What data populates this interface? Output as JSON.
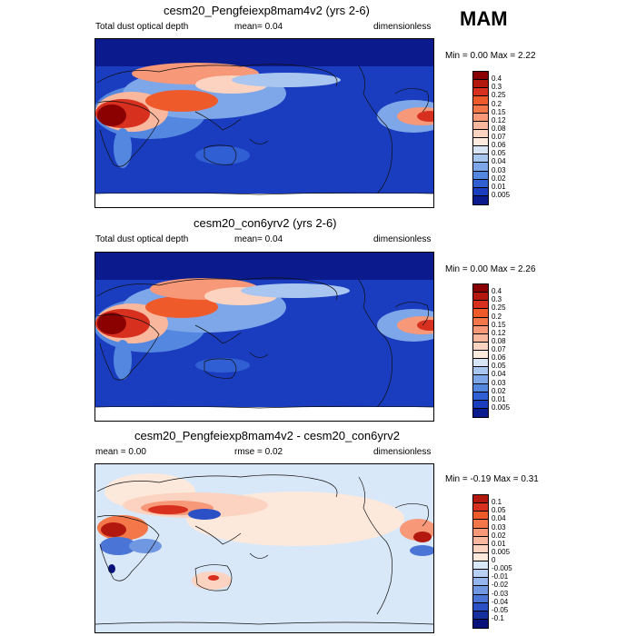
{
  "season": "MAM",
  "colors": {
    "ocean_bg": "#0b1a8c",
    "missing": "#ffffff",
    "diff_bg": "#d9e8f8",
    "coast": "#111111"
  },
  "panels": [
    {
      "title": "cesm20_Pengfeiexp8mam4v2 (yrs 2-6)",
      "left_label": "Total dust optical depth",
      "mean_label": "mean=  0.04",
      "units": "dimensionless",
      "minmax": "Min =  0.00 Max =  2.22",
      "levels": [
        "0.4",
        "0.3",
        "0.25",
        "0.2",
        "0.15",
        "0.12",
        "0.08",
        "0.07",
        "0.06",
        "0.05",
        "0.04",
        "0.03",
        "0.02",
        "0.01",
        "0.005"
      ],
      "palette": [
        "#8b0000",
        "#b2180e",
        "#d7301f",
        "#ef5a2b",
        "#f4774a",
        "#f79878",
        "#f9b79d",
        "#fbd3c0",
        "#fdebe0",
        "#d7e5f7",
        "#a8c6f0",
        "#7ea7ea",
        "#5487e0",
        "#2f5fd3",
        "#1a3cbf",
        "#0b1a8c"
      ]
    },
    {
      "title": "cesm20_con6yrv2 (yrs 2-6)",
      "left_label": "Total dust optical depth",
      "mean_label": "mean=  0.04",
      "units": "dimensionless",
      "minmax": "Min =  0.00 Max =  2.26",
      "levels": [
        "0.4",
        "0.3",
        "0.25",
        "0.2",
        "0.15",
        "0.12",
        "0.08",
        "0.07",
        "0.06",
        "0.05",
        "0.04",
        "0.03",
        "0.02",
        "0.01",
        "0.005"
      ],
      "palette": [
        "#8b0000",
        "#b2180e",
        "#d7301f",
        "#ef5a2b",
        "#f4774a",
        "#f79878",
        "#f9b79d",
        "#fbd3c0",
        "#fdebe0",
        "#d7e5f7",
        "#a8c6f0",
        "#7ea7ea",
        "#5487e0",
        "#2f5fd3",
        "#1a3cbf",
        "#0b1a8c"
      ]
    },
    {
      "title": "cesm20_Pengfeiexp8mam4v2 - cesm20_con6yrv2",
      "left_label": "mean =  0.00",
      "mean_label": "rmse =  0.02",
      "units": "dimensionless",
      "minmax": "Min = -0.19 Max =  0.31",
      "levels": [
        "0.1",
        "0.05",
        "0.04",
        "0.03",
        "0.02",
        "0.01",
        "0.005",
        "0",
        "-0.005",
        "-0.01",
        "-0.02",
        "-0.03",
        "-0.04",
        "-0.05",
        "-0.1"
      ],
      "palette": [
        "#b2180e",
        "#d7301f",
        "#ef5a2b",
        "#f4774a",
        "#f79878",
        "#f9b79d",
        "#fbd3c0",
        "#fde9dc",
        "#d9e8f8",
        "#b7d0f3",
        "#94b6ec",
        "#6f97e2",
        "#4a74d6",
        "#2b4fc4",
        "#15309e",
        "#08127a"
      ]
    }
  ]
}
